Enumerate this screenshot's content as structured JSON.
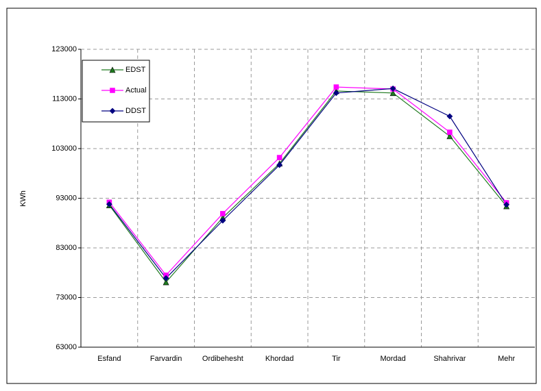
{
  "chart_data": {
    "type": "line",
    "ylabel": "KWh",
    "categories": [
      "Esfand",
      "Farvardin",
      "Ordibehesht",
      "Khordad",
      "Tir",
      "Mordad",
      "Shahrivar",
      "Mehr"
    ],
    "series": [
      {
        "name": "EDST",
        "color": "#1f7a1f",
        "marker": "triangle",
        "values": [
          91600,
          76100,
          89100,
          100000,
          114600,
          114200,
          105500,
          91400
        ]
      },
      {
        "name": "Actual",
        "color": "#ff00ff",
        "marker": "square",
        "values": [
          92200,
          77500,
          89900,
          101200,
          115400,
          115000,
          106300,
          92100
        ]
      },
      {
        "name": "DDST",
        "color": "#000080",
        "marker": "diamond",
        "values": [
          91800,
          76900,
          88500,
          99700,
          114200,
          115100,
          109500,
          91700
        ]
      }
    ],
    "ylim": [
      63000,
      123000
    ],
    "yticks": [
      63000,
      73000,
      83000,
      93000,
      103000,
      113000,
      123000
    ],
    "grid": true,
    "legend": "upper left"
  }
}
